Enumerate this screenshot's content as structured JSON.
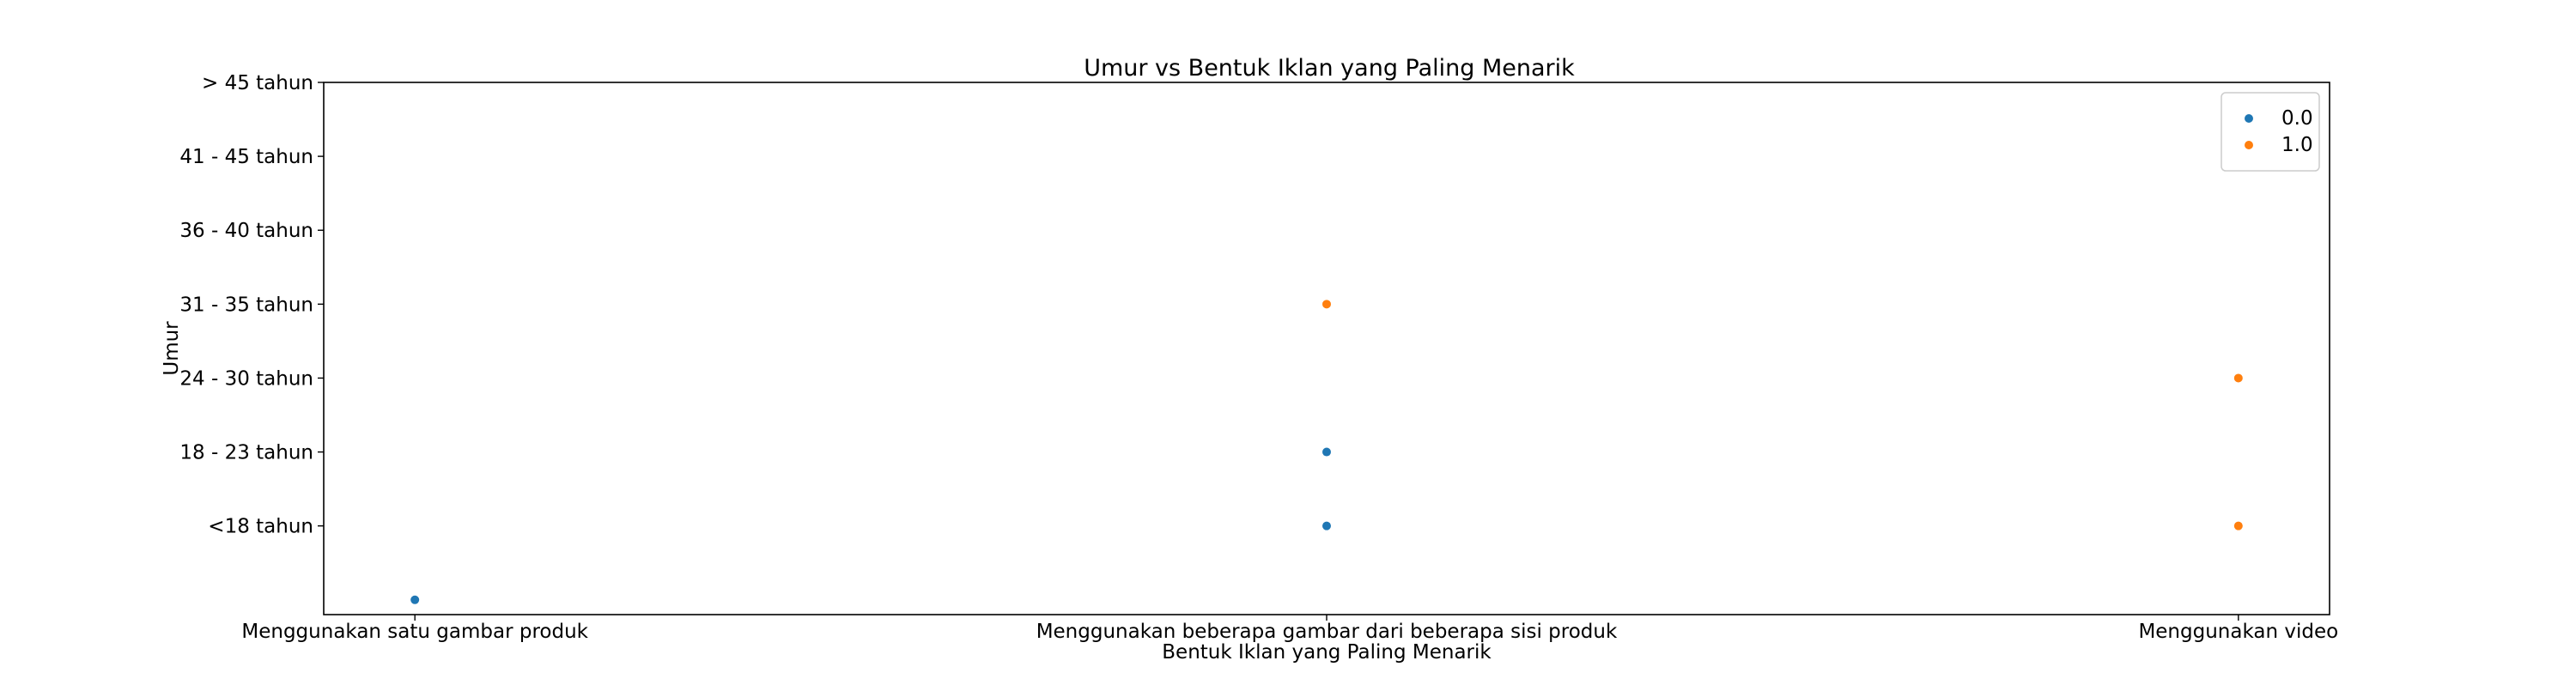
{
  "chart_data": {
    "type": "scatter",
    "title": "Umur vs Bentuk Iklan yang Paling Menarik",
    "xlabel": "Bentuk Iklan yang Paling Menarik",
    "ylabel": "Umur",
    "x_categories": [
      "Menggunakan satu gambar produk",
      "Menggunakan beberapa gambar dari beberapa sisi produk",
      "Menggunakan video"
    ],
    "y_categories": [
      "",
      "<18 tahun",
      "18 - 23 tahun",
      "24 - 30 tahun",
      "31 - 35 tahun",
      "36 - 40 tahun",
      "41 - 45 tahun",
      "> 45 tahun"
    ],
    "y_tick_labels": [
      "<18 tahun",
      "18 - 23 tahun",
      "24 - 30 tahun",
      "31 - 35 tahun",
      "36 - 40 tahun",
      "41 - 45 tahun",
      "> 45 tahun"
    ],
    "series": [
      {
        "name": "0.0",
        "color": "#1f77b4",
        "points": [
          {
            "x": "Menggunakan satu gambar produk",
            "y": ""
          },
          {
            "x": "Menggunakan beberapa gambar dari beberapa sisi produk",
            "y": "18 - 23 tahun"
          },
          {
            "x": "Menggunakan beberapa gambar dari beberapa sisi produk",
            "y": "<18 tahun"
          }
        ]
      },
      {
        "name": "1.0",
        "color": "#ff7f0e",
        "points": [
          {
            "x": "Menggunakan beberapa gambar dari beberapa sisi produk",
            "y": "31 - 35 tahun"
          },
          {
            "x": "Menggunakan video",
            "y": "24 - 30 tahun"
          },
          {
            "x": "Menggunakan video",
            "y": "<18 tahun"
          }
        ]
      }
    ],
    "grid": false,
    "legend_position": "top-right"
  }
}
